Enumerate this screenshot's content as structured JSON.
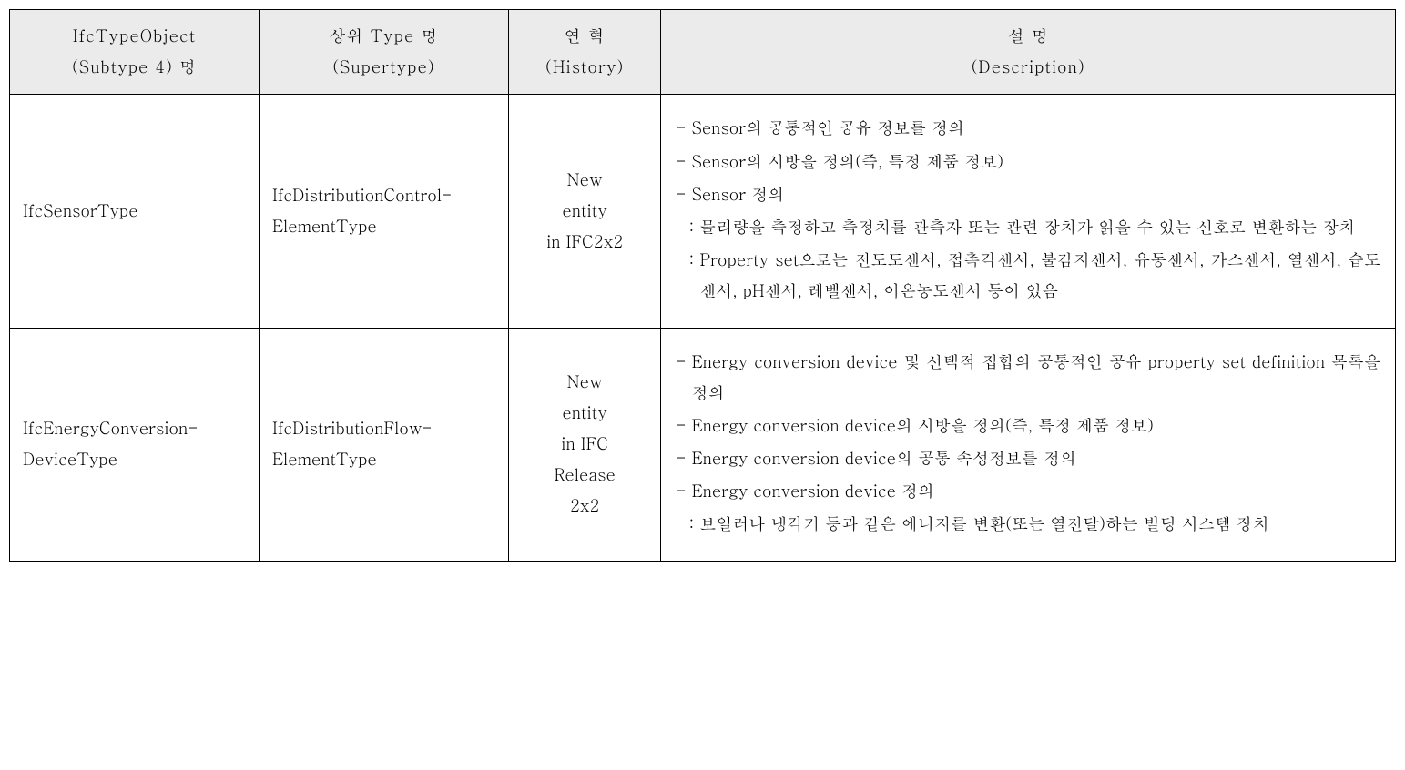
{
  "table": {
    "headers": {
      "col1_line1": "IfcTypeObject",
      "col1_line2": "(Subtype 4) 명",
      "col2_line1": "상위 Type 명",
      "col2_line2": "(Supertype)",
      "col3_line1": "연   혁",
      "col3_line2": "(History)",
      "col4_line1": "설   명",
      "col4_line2": "(Description)"
    },
    "rows": [
      {
        "subtype": "IfcSensorType",
        "supertype_line1": "IfcDistributionControl-",
        "supertype_line2": "ElementType",
        "history_line1": "New",
        "history_line2": "entity",
        "history_line3": "in IFC2x2",
        "desc": [
          {
            "bullet": "-",
            "text": "Sensor의 공통적인 공유 정보를 정의"
          },
          {
            "bullet": "-",
            "text": "Sensor의 시방을 정의(즉, 특정 제품 정보)"
          },
          {
            "bullet": "-",
            "text": "Sensor 정의"
          }
        ],
        "subs": [
          {
            "bullet": ":",
            "text": "물리량을 측정하고 측정치를 관측자 또는 관련 장치가 읽을 수 있는 신호로 변환하는 장치"
          },
          {
            "bullet": ":",
            "text": "Property set으로는 전도도센서, 접촉각센서, 불감지센서, 유동센서, 가스센서, 열센서, 습도센서, pH센서, 레벨센서, 이온농도센서 등이 있음"
          }
        ]
      },
      {
        "subtype_line1": "IfcEnergyConversion-",
        "subtype_line2": "DeviceType",
        "supertype_line1": "IfcDistributionFlow-",
        "supertype_line2": "ElementType",
        "history_line1": "New",
        "history_line2": "entity",
        "history_line3": "in IFC",
        "history_line4": "Release",
        "history_line5": "2x2",
        "desc": [
          {
            "bullet": "-",
            "text": "Energy conversion device 및 선택적 집합의 공통적인 공유 property set definition 목록을 정의"
          },
          {
            "bullet": "-",
            "text": "Energy conversion device의 시방을 정의(즉, 특정 제품 정보)"
          },
          {
            "bullet": "-",
            "text": "Energy conversion device의 공통 속성정보를 정의"
          },
          {
            "bullet": "-",
            "text": "Energy conversion device 정의"
          }
        ],
        "subs": [
          {
            "bullet": ":",
            "text": "보일러나 냉각기 등과 같은 에너지를 변환(또는 열전달)하는 빌딩 시스템 장치"
          }
        ]
      }
    ],
    "colors": {
      "header_bg": "#ebebeb",
      "border": "#000000",
      "text": "#000000",
      "background": "#ffffff"
    },
    "font_size": 18
  }
}
